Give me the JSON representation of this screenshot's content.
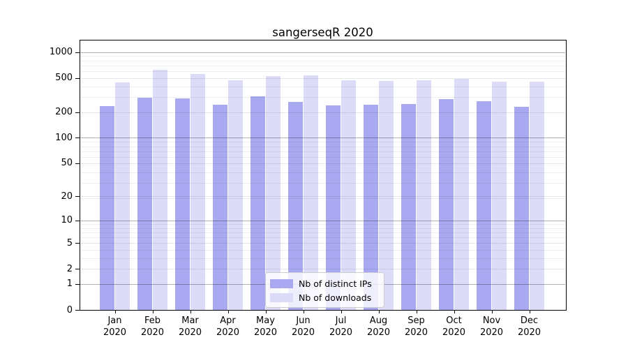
{
  "chart_data": {
    "type": "bar",
    "title": "sangerseqR 2020",
    "categories": [
      "Jan 2020",
      "Feb 2020",
      "Mar 2020",
      "Apr 2020",
      "May 2020",
      "Jun 2020",
      "Jul 2020",
      "Aug 2020",
      "Sep 2020",
      "Oct 2020",
      "Nov 2020",
      "Dec 2020"
    ],
    "series": [
      {
        "name": "Nb of distinct IPs",
        "color": "#a9a9f1",
        "values": [
          235,
          296,
          286,
          245,
          305,
          261,
          237,
          243,
          248,
          283,
          268,
          232
        ]
      },
      {
        "name": "Nb of downloads",
        "color": "#dcdcf8",
        "values": [
          444,
          625,
          552,
          466,
          528,
          531,
          472,
          459,
          466,
          490,
          455,
          449
        ]
      }
    ],
    "y_ticks": [
      0,
      1,
      2,
      5,
      10,
      20,
      50,
      100,
      200,
      500,
      1000
    ],
    "y_scale": "log10(value+1)",
    "ylim": [
      0,
      1380
    ],
    "xlabel": "",
    "ylabel": "",
    "grid": true,
    "legend_position": "lower center",
    "colors": {
      "axis": "#000000",
      "grid_major": "rgba(0,0,0,0.30)",
      "grid_mid": "rgba(20,20,40,0.10)",
      "grid_minor": "rgba(20,20,40,0.07)",
      "background": "#ffffff"
    }
  }
}
